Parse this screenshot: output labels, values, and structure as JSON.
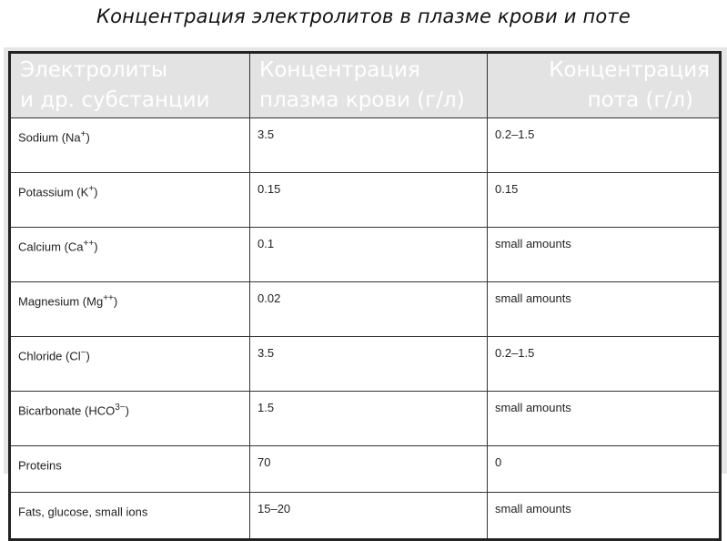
{
  "title": "Концентрация электролитов в плазме крови и поте",
  "table": {
    "headers": [
      {
        "line1": "Электролиты",
        "line2": "и др. субстанции"
      },
      {
        "line1": "Концентрация",
        "line2": "плазма крови (г/л)"
      },
      {
        "line1": "Концентрация",
        "line2": "пота (г/л)"
      }
    ],
    "rows": [
      {
        "name": "Sodium (Na",
        "sup": "+",
        "tail": ")",
        "plasma": "3.5",
        "sweat": "0.2–1.5"
      },
      {
        "name": "Potassium (K",
        "sup": "+",
        "tail": ")",
        "plasma": "0.15",
        "sweat": "0.15"
      },
      {
        "name": "Calcium (Ca",
        "sup": "++",
        "tail": ")",
        "plasma": "0.1",
        "sweat": "small amounts"
      },
      {
        "name": "Magnesium (Mg",
        "sup": "++",
        "tail": ")",
        "plasma": "0.02",
        "sweat": "small amounts"
      },
      {
        "name": "Chloride (Cl",
        "sup": "−",
        "tail": ")",
        "plasma": "3.5",
        "sweat": "0.2–1.5"
      },
      {
        "name": "Bicarbonate (HCO",
        "sup": "3−",
        "tail": ")",
        "plasma": "1.5",
        "sweat": "small amounts"
      },
      {
        "name": "Proteins",
        "sup": "",
        "tail": "",
        "plasma": "70",
        "sweat": "0"
      },
      {
        "name": "Fats, glucose, small ions",
        "sup": "",
        "tail": "",
        "plasma": "15–20",
        "sweat": "small amounts"
      }
    ]
  }
}
